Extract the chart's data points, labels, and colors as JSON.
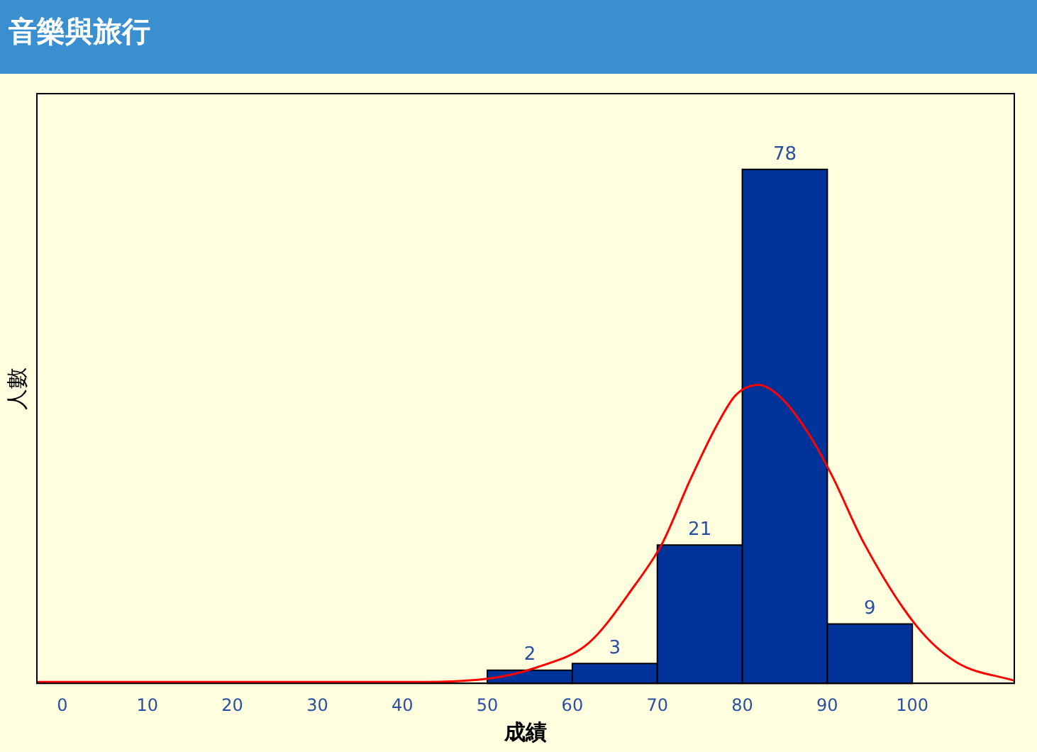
{
  "chart_data": {
    "type": "histogram",
    "title": "音樂與旅行",
    "xlabel": "成績",
    "ylabel": "人數",
    "bins": [
      50,
      60,
      70,
      80,
      90,
      100
    ],
    "values": [
      2,
      3,
      21,
      78,
      9
    ],
    "color": "#003399",
    "value_labels": [
      "2",
      "3",
      "21",
      "78",
      "9"
    ],
    "series": [
      {
        "type": "line",
        "color": "#ff0000",
        "x": [
          -3,
          40,
          50,
          56,
          61.9,
          67.3,
          70.6,
          73.8,
          77.1,
          79.2,
          81.9,
          84.6,
          87.8,
          90.6,
          94.3,
          100.5,
          105.2,
          112
        ],
        "values": [
          0.2,
          0.2,
          0.7,
          2.5,
          6.1,
          14.8,
          21.3,
          30.7,
          39.4,
          43.7,
          45.3,
          43.3,
          37.9,
          31.4,
          21.3,
          8.7,
          3.2,
          0.4
        ]
      }
    ],
    "xlim": [
      -3,
      112
    ],
    "xticks": [
      0,
      10,
      20,
      30,
      40,
      50,
      60,
      70,
      80,
      90,
      100
    ],
    "ylim": [
      0,
      89.5
    ],
    "tick_labels": "x",
    "grid": false,
    "legend": false,
    "marker": "none"
  }
}
